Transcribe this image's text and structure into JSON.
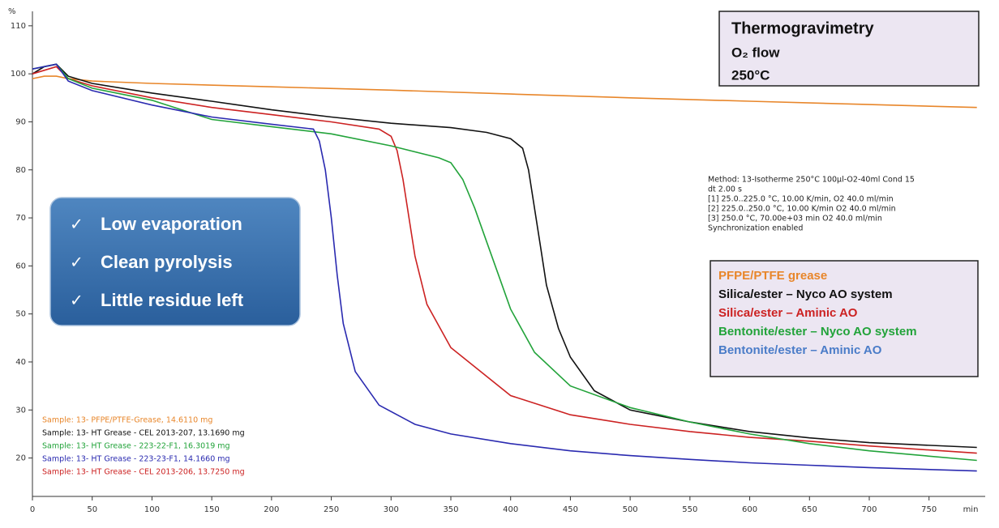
{
  "chart_data": {
    "type": "line",
    "x_unit": "min",
    "y_unit": "%",
    "xlim": [
      0,
      797
    ],
    "ylim": [
      12,
      112
    ],
    "xticks": [
      0,
      50,
      100,
      150,
      200,
      250,
      300,
      350,
      400,
      450,
      500,
      550,
      600,
      650,
      700,
      750
    ],
    "yticks": [
      20,
      30,
      40,
      50,
      60,
      70,
      80,
      90,
      100,
      110
    ],
    "series": [
      {
        "name": "PFPE/PTFE grease",
        "color": "#e8862a",
        "x": [
          0,
          10,
          20,
          30,
          50,
          100,
          200,
          300,
          400,
          500,
          600,
          700,
          790
        ],
        "values": [
          99,
          99.5,
          99.5,
          99,
          98.5,
          98,
          97.3,
          96.6,
          95.8,
          95,
          94.3,
          93.6,
          93
        ]
      },
      {
        "name": "Silica/ester – Nyco AO system",
        "color": "#111111",
        "x": [
          0,
          10,
          20,
          30,
          50,
          100,
          150,
          200,
          250,
          300,
          350,
          380,
          400,
          410,
          415,
          420,
          425,
          430,
          440,
          450,
          470,
          500,
          550,
          600,
          650,
          700,
          790
        ],
        "values": [
          100,
          101.5,
          102,
          99.5,
          98,
          96,
          94.3,
          92.5,
          91,
          89.7,
          88.8,
          87.8,
          86.5,
          84.5,
          80,
          72,
          64,
          56,
          47,
          41,
          34,
          30,
          27.5,
          25.5,
          24.2,
          23.2,
          22.2
        ]
      },
      {
        "name": "Silica/ester – Aminic AO",
        "color": "#cc2222",
        "x": [
          0,
          20,
          30,
          50,
          100,
          150,
          200,
          250,
          290,
          300,
          305,
          310,
          315,
          320,
          330,
          350,
          400,
          450,
          500,
          550,
          600,
          650,
          700,
          790
        ],
        "values": [
          100,
          101.5,
          99,
          97.5,
          95,
          93,
          91.5,
          90,
          88.5,
          87,
          84,
          78,
          70,
          62,
          52,
          43,
          33,
          29,
          27,
          25.5,
          24.3,
          23.5,
          22.5,
          21
        ]
      },
      {
        "name": "Bentonite/ester – Nyco AO system",
        "color": "#22a33a",
        "x": [
          0,
          20,
          30,
          50,
          100,
          150,
          200,
          250,
          300,
          340,
          350,
          360,
          370,
          380,
          390,
          400,
          420,
          450,
          500,
          550,
          600,
          650,
          700,
          790
        ],
        "values": [
          101,
          102,
          99,
          97,
          94.5,
          90.5,
          89,
          87.5,
          85,
          82.5,
          81.5,
          78,
          72,
          65,
          58,
          51,
          42,
          35,
          30.5,
          27.5,
          25,
          23,
          21.5,
          19.5
        ]
      },
      {
        "name": "Bentonite/ester – Aminic AO",
        "color": "#2a2ab0",
        "label_color": "#4a7cc8",
        "x": [
          0,
          20,
          30,
          50,
          100,
          150,
          200,
          235,
          240,
          245,
          250,
          255,
          260,
          270,
          290,
          320,
          350,
          400,
          450,
          500,
          550,
          600,
          650,
          700,
          790
        ],
        "values": [
          101,
          102,
          98.5,
          96.5,
          93.5,
          91,
          89.5,
          88.5,
          86,
          80,
          70,
          58,
          48,
          38,
          31,
          27,
          25,
          23,
          21.5,
          20.5,
          19.7,
          19,
          18.5,
          18,
          17.3
        ]
      }
    ],
    "title_box": [
      "Thermogravimetry",
      "O₂ flow",
      "250°C"
    ],
    "highlights": [
      "Low evaporation",
      "Clean pyrolysis",
      "Little residue left"
    ],
    "method": [
      "Method: 13-Isotherme 250°C 100µl-O2-40ml Cond 15",
      "dt 2.00 s",
      "[1] 25.0..225.0 °C, 10.00 K/min, O2 40.0 ml/min",
      "[2] 225.0..250.0 °C, 10.00 K/min  O2 40.0 ml/min",
      "[3] 250.0 °C, 70.00e+03 min      O2 40.0 ml/min",
      "Synchronization enabled"
    ],
    "samples": [
      {
        "text": "Sample: 13- PFPE/PTFE-Grease, 14.6110 mg",
        "color": "#e8862a"
      },
      {
        "text": "Sample: 13- HT Grease - CEL 2013-207, 13.1690 mg",
        "color": "#111111"
      },
      {
        "text": "Sample: 13- HT Grease - 223-22-F1, 16.3019 mg",
        "color": "#22a33a"
      },
      {
        "text": "Sample: 13- HT Grease - 223-23-F1, 14.1660 mg",
        "color": "#2a2ab0"
      },
      {
        "text": "Sample: 13- HT Grease - CEL 2013-206, 13.7250 mg",
        "color": "#cc2222"
      }
    ]
  }
}
